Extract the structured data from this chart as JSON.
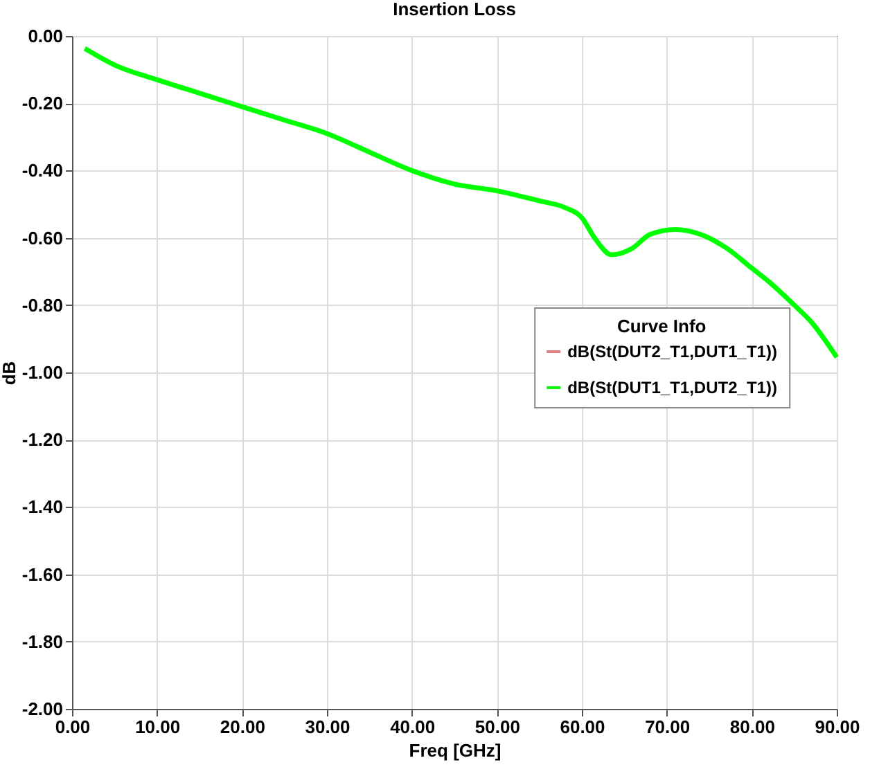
{
  "chart_data": {
    "type": "line",
    "title": "Insertion Loss",
    "xlabel": "Freq [GHz]",
    "ylabel": "dB",
    "legend_title": "Curve Info",
    "x": [
      1.5,
      5,
      10,
      15,
      20,
      25,
      30,
      35,
      40,
      45,
      50,
      55,
      58,
      60,
      61.5,
      63.5,
      66,
      68,
      71,
      74,
      77,
      80,
      82,
      85,
      87,
      90
    ],
    "series": [
      {
        "name": "dB(St(DUT2_T1,DUT1_T1))",
        "color": "#e08080",
        "values": [
          null,
          null,
          null,
          null,
          null,
          null,
          null,
          null,
          null,
          null,
          null,
          null,
          null,
          null,
          null,
          null,
          null,
          null,
          null,
          null,
          null,
          null,
          null,
          null,
          null,
          null
        ]
      },
      {
        "name": "dB(St(DUT1_T1,DUT2_T1))",
        "color": "#00ff00",
        "values": [
          -0.037,
          -0.086,
          -0.13,
          -0.17,
          -0.21,
          -0.25,
          -0.29,
          -0.345,
          -0.4,
          -0.44,
          -0.46,
          -0.49,
          -0.51,
          -0.54,
          -0.6,
          -0.65,
          -0.63,
          -0.59,
          -0.575,
          -0.59,
          -0.63,
          -0.69,
          -0.73,
          -0.8,
          -0.85,
          -0.955
        ]
      }
    ],
    "xlim": [
      0,
      90
    ],
    "ylim": [
      -2,
      0
    ],
    "xticks": [
      {
        "value": 0,
        "label": "0.00"
      },
      {
        "value": 10,
        "label": "10.00"
      },
      {
        "value": 20,
        "label": "20.00"
      },
      {
        "value": 30,
        "label": "30.00"
      },
      {
        "value": 40,
        "label": "40.00"
      },
      {
        "value": 50,
        "label": "50.00"
      },
      {
        "value": 60,
        "label": "60.00"
      },
      {
        "value": 70,
        "label": "70.00"
      },
      {
        "value": 80,
        "label": "80.00"
      },
      {
        "value": 90,
        "label": "90.00"
      }
    ],
    "yticks": [
      {
        "value": -2,
        "label": "-2.00"
      },
      {
        "value": -1.8,
        "label": "-1.80"
      },
      {
        "value": -1.6,
        "label": "-1.60"
      },
      {
        "value": -1.4,
        "label": "-1.40"
      },
      {
        "value": -1.2,
        "label": "-1.20"
      },
      {
        "value": -1,
        "label": "-1.00"
      },
      {
        "value": -0.8,
        "label": "-0.80"
      },
      {
        "value": -0.6,
        "label": "-0.60"
      },
      {
        "value": -0.4,
        "label": "-0.40"
      },
      {
        "value": -0.2,
        "label": "-0.20"
      },
      {
        "value": 0,
        "label": "0.00"
      }
    ],
    "grid": true,
    "legend": "right"
  }
}
